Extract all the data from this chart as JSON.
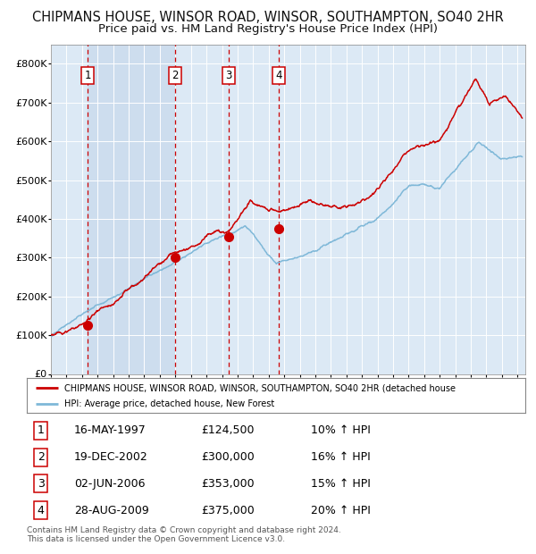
{
  "title": "CHIPMANS HOUSE, WINSOR ROAD, WINSOR, SOUTHAMPTON, SO40 2HR",
  "subtitle": "Price paid vs. HM Land Registry's House Price Index (HPI)",
  "title_fontsize": 10.5,
  "subtitle_fontsize": 9.5,
  "background_color": "#ffffff",
  "plot_bg_color": "#dce9f5",
  "grid_color": "#ffffff",
  "hpi_line_color": "#7fb8d8",
  "price_line_color": "#cc0000",
  "sale_dot_color": "#cc0000",
  "dashed_line_color": "#cc0000",
  "shade_color": "#c8d8ec",
  "legend_line1": "CHIPMANS HOUSE, WINSOR ROAD, WINSOR, SOUTHAMPTON, SO40 2HR (detached house",
  "legend_line2": "HPI: Average price, detached house, New Forest",
  "footer": "Contains HM Land Registry data © Crown copyright and database right 2024.\nThis data is licensed under the Open Government Licence v3.0.",
  "ylim": [
    0,
    850000
  ],
  "yticks": [
    0,
    100000,
    200000,
    300000,
    400000,
    500000,
    600000,
    700000,
    800000
  ],
  "ytick_labels": [
    "£0",
    "£100K",
    "£200K",
    "£300K",
    "£400K",
    "£500K",
    "£600K",
    "£700K",
    "£800K"
  ],
  "xlim_start": 1995.0,
  "xlim_end": 2025.5,
  "sale_years": [
    1997.37,
    2002.97,
    2006.42,
    2009.65
  ],
  "sale_prices": [
    124500,
    300000,
    353000,
    375000
  ],
  "sale_labels": [
    "1",
    "2",
    "3",
    "4"
  ],
  "table_data": [
    [
      "1",
      "16-MAY-1997",
      "£124,500",
      "10% ↑ HPI"
    ],
    [
      "2",
      "19-DEC-2002",
      "£300,000",
      "16% ↑ HPI"
    ],
    [
      "3",
      "02-JUN-2006",
      "£353,000",
      "15% ↑ HPI"
    ],
    [
      "4",
      "28-AUG-2009",
      "£375,000",
      "20% ↑ HPI"
    ]
  ]
}
